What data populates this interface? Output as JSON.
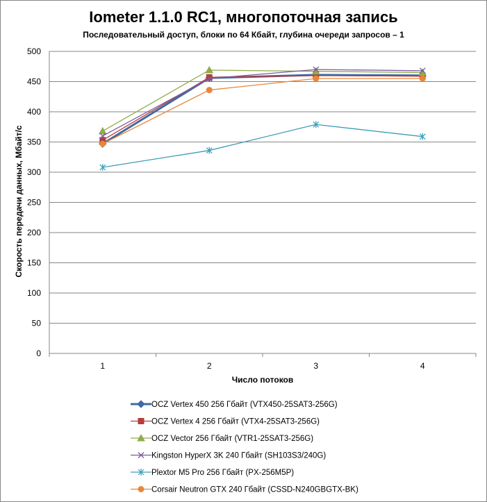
{
  "chart_data": {
    "type": "line",
    "title": "Iometer 1.1.0 RC1, многопоточная запись",
    "subtitle": "Последовательный  доступ, блоки  по 64 Кбайт,  глубина очереди запросов – 1",
    "xlabel": "Число  потоков",
    "ylabel": "Скорость  передачи данных, Мбайт/с",
    "x": [
      1,
      2,
      3,
      4
    ],
    "ylim": [
      0,
      500
    ],
    "yticks": [
      0,
      50,
      100,
      150,
      200,
      250,
      300,
      350,
      400,
      450,
      500
    ],
    "grid": true,
    "legend_position": "bottom",
    "series": [
      {
        "name": "OCZ Vertex  450 256 Гбайт (VTX450-25SAT3-256G)",
        "values": [
          347,
          456,
          461,
          460
        ],
        "color": "#4169a5",
        "marker": "diamond",
        "bold": true
      },
      {
        "name": "OCZ Vertex  4 256 Гбайт (VTX4-25SAT3-256G)",
        "values": [
          353,
          457,
          460,
          459
        ],
        "color": "#b63c3a",
        "marker": "square"
      },
      {
        "name": "OCZ Vector  256 Гбайт (VTR1-25SAT3-256G)",
        "values": [
          368,
          469,
          467,
          465
        ],
        "color": "#8fad4b",
        "marker": "triangle"
      },
      {
        "name": "Kingston HyperX  3K 240 Гбайт (SH103S3/240G)",
        "values": [
          360,
          455,
          470,
          468
        ],
        "color": "#7b5b9a",
        "marker": "x"
      },
      {
        "name": "Plextor  M5 Pro 256 Гбайт (PX-256M5P)",
        "values": [
          308,
          336,
          379,
          359
        ],
        "color": "#3b9cb8",
        "marker": "star"
      },
      {
        "name": "Corsair Neutron GTX 240 Гбайт (CSSD-N240GBGTX-BK)",
        "values": [
          347,
          436,
          455,
          455
        ],
        "color": "#e8873a",
        "marker": "circle"
      }
    ]
  }
}
